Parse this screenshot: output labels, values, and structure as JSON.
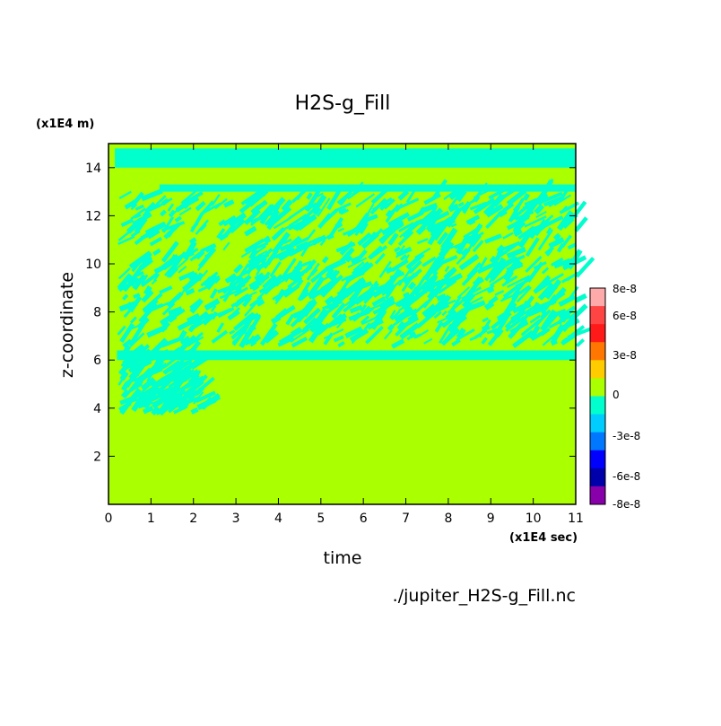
{
  "chart_data": {
    "type": "heatmap",
    "title": "H2S-g_Fill",
    "xlabel": "time",
    "ylabel": "z-coordinate",
    "x_unit": "(x1E4 sec)",
    "y_unit": "(x1E4 m)",
    "source_file": "./jupiter_H2S-g_Fill.nc",
    "xlim": [
      0,
      11
    ],
    "ylim": [
      0,
      15
    ],
    "x_ticks": [
      "0",
      "1",
      "2",
      "3",
      "4",
      "5",
      "6",
      "7",
      "8",
      "9",
      "10",
      "11"
    ],
    "y_ticks": [
      "2",
      "4",
      "6",
      "8",
      "10",
      "12",
      "14"
    ],
    "background_level": 0,
    "features": [
      {
        "name": "upper band (top)",
        "x": [
          0.15,
          11
        ],
        "z": [
          14.0,
          14.8
        ],
        "value": -1.5e-08
      },
      {
        "name": "upper band (lower edge)",
        "x": [
          1.2,
          11
        ],
        "z": [
          13.0,
          13.3
        ],
        "value": -1.5e-08
      },
      {
        "name": "turbulent layer",
        "x": [
          0.2,
          11
        ],
        "z": [
          6.6,
          12.8
        ],
        "value": -1.5e-08
      },
      {
        "name": "lower band",
        "x": [
          0.2,
          11
        ],
        "z": [
          6.0,
          6.4
        ],
        "value": -1.5e-08
      },
      {
        "name": "early plumes",
        "x": [
          0.2,
          2.2
        ],
        "z": [
          3.8,
          6.4
        ],
        "value": -1.5e-08
      }
    ],
    "colorbar": {
      "labels": [
        "8e-8",
        "6e-8",
        "3e-8",
        "0",
        "-3e-8",
        "-6e-8",
        "-8e-8"
      ],
      "levels": [
        {
          "color": "#ffaaaa"
        },
        {
          "color": "#ff4444"
        },
        {
          "color": "#ff1a1a"
        },
        {
          "color": "#ff7700"
        },
        {
          "color": "#ffcc00"
        },
        {
          "color": "#aaff00"
        },
        {
          "color": "#00ffcc"
        },
        {
          "color": "#00ccff"
        },
        {
          "color": "#0077ff"
        },
        {
          "color": "#0000ff"
        },
        {
          "color": "#0000aa"
        },
        {
          "color": "#8800aa"
        }
      ]
    },
    "field_color": "#aaff00",
    "feature_color": "#00ffcc"
  }
}
